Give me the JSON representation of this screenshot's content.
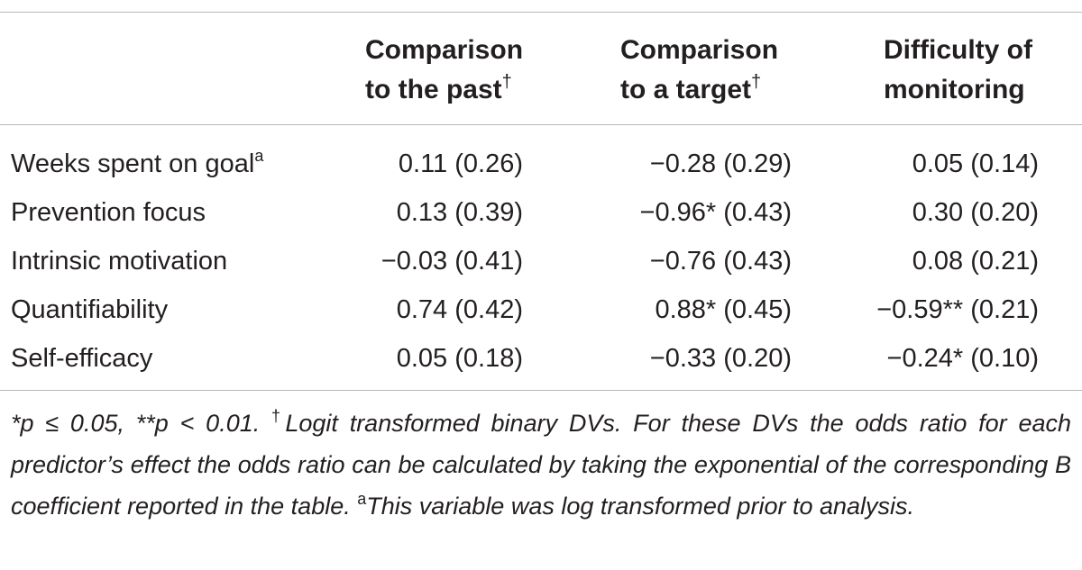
{
  "table": {
    "headers": [
      {
        "line1": "Comparison",
        "line2": "to the past",
        "mark": "†"
      },
      {
        "line1": "Comparison",
        "line2": "to a target",
        "mark": "†"
      },
      {
        "line1": "Difficulty of",
        "line2": "monitoring",
        "mark": ""
      }
    ],
    "rows": [
      {
        "label": "Weeks spent on goal",
        "label_sup": "a",
        "past": "0.11 (0.26)",
        "target": "−0.28 (0.29)",
        "monitoring": "0.05 (0.14)"
      },
      {
        "label": "Prevention focus",
        "label_sup": "",
        "past": "0.13 (0.39)",
        "target": "−0.96* (0.43)",
        "monitoring": "0.30 (0.20)"
      },
      {
        "label": "Intrinsic motivation",
        "label_sup": "",
        "past": "−0.03 (0.41)",
        "target": "−0.76 (0.43)",
        "monitoring": "0.08 (0.21)"
      },
      {
        "label": "Quantifiability",
        "label_sup": "",
        "past": "0.74 (0.42)",
        "target": "0.88* (0.45)",
        "monitoring": "−0.59** (0.21)"
      },
      {
        "label": "Self-efficacy",
        "label_sup": "",
        "past": "0.05 (0.18)",
        "target": "−0.33 (0.20)",
        "monitoring": "−0.24* (0.10)"
      }
    ]
  },
  "footnote": {
    "sig": "*p ≤ 0.05, **p < 0.01. ",
    "dagger": "†",
    "dagger_text": "Logit transformed binary DVs. For these DVs the odds ratio for each predictor’s effect the odds ratio can be calculated by taking the exponential of the corresponding B coefficient reported in the table. ",
    "a_mark": "a",
    "a_text": "This variable was log transformed prior to analysis."
  }
}
